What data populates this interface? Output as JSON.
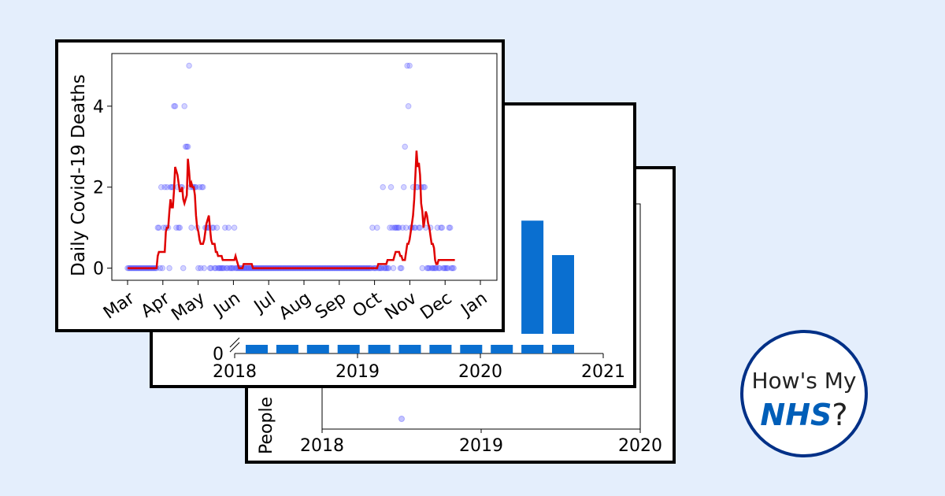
{
  "logo": {
    "line1": "How's My",
    "brand": "NHS",
    "suffix": "?"
  },
  "colors": {
    "background": "#e4eefc",
    "bar": "#0a6fd0",
    "line": "#e00000",
    "points": "#3b3bff",
    "logo_border": "#003087",
    "logo_brand": "#005eb8"
  },
  "chart_data": [
    {
      "id": "back",
      "type": "scatter",
      "ylabel": "People",
      "x_ticks": [
        "2018",
        "2019",
        "2020"
      ],
      "xlim": [
        2018,
        2020
      ],
      "points": [
        {
          "x": 2018.5,
          "y": 0
        }
      ]
    },
    {
      "id": "middle",
      "type": "bar",
      "y_ticks": [
        "0"
      ],
      "x_ticks": [
        "2018",
        "2019",
        "2020",
        "2021"
      ],
      "xlim": [
        2018,
        2021
      ],
      "categories": [
        "2018",
        "2018.25",
        "2018.5",
        "2018.75",
        "2019",
        "2019.25",
        "2019.5",
        "2019.75",
        "2020",
        "2020.25",
        "2020.5"
      ],
      "values": [
        0.05,
        0.05,
        0.05,
        0.05,
        0.05,
        0.05,
        0.05,
        0.05,
        0.05,
        1.15,
        0.8
      ],
      "axis_break": true
    },
    {
      "id": "front",
      "type": "scatter",
      "ylabel": "Daily Covid-19 Deaths",
      "x_ticks": [
        "Mar",
        "Apr",
        "May",
        "Jun",
        "Jul",
        "Aug",
        "Sep",
        "Oct",
        "Nov",
        "Dec",
        "Jan"
      ],
      "y_ticks": [
        "0",
        "2",
        "4"
      ],
      "ylim": [
        -0.3,
        5.3
      ],
      "grid": false,
      "daily_start": "2020-03-01",
      "daily_deaths": [
        0,
        0,
        0,
        0,
        0,
        0,
        0,
        0,
        0,
        0,
        0,
        0,
        0,
        0,
        0,
        0,
        0,
        0,
        0,
        0,
        0,
        0,
        0,
        0,
        0,
        0,
        1,
        1,
        0,
        2,
        0,
        1,
        2,
        1,
        2,
        1,
        0,
        2,
        2,
        2,
        4,
        4,
        1,
        2,
        1,
        1,
        2,
        2,
        0,
        4,
        3,
        3,
        3,
        5,
        2,
        1,
        2,
        2,
        2,
        2,
        1,
        0,
        2,
        0,
        2,
        2,
        0,
        1,
        1,
        1,
        1,
        0,
        0,
        1,
        1,
        0,
        0,
        1,
        0,
        0,
        0,
        0,
        0,
        0,
        1,
        0,
        0,
        1,
        0,
        0,
        0,
        0,
        1,
        0,
        0,
        0,
        0,
        0,
        0,
        0,
        0,
        0,
        0,
        0,
        0,
        0,
        0,
        0,
        0,
        0,
        0,
        0,
        0,
        0,
        0,
        0,
        0,
        0,
        0,
        0,
        0,
        0,
        0,
        0,
        0,
        0,
        0,
        0,
        0,
        0,
        0,
        0,
        0,
        0,
        0,
        0,
        0,
        0,
        0,
        0,
        0,
        0,
        0,
        0,
        0,
        0,
        0,
        0,
        0,
        0,
        0,
        0,
        0,
        0,
        0,
        0,
        0,
        0,
        0,
        0,
        0,
        0,
        0,
        0,
        0,
        0,
        0,
        0,
        0,
        0,
        0,
        0,
        0,
        0,
        0,
        0,
        0,
        0,
        0,
        0,
        0,
        0,
        0,
        0,
        0,
        0,
        0,
        0,
        0,
        0,
        0,
        0,
        0,
        0,
        0,
        0,
        0,
        0,
        0,
        0,
        0,
        0,
        0,
        0,
        0,
        0,
        0,
        0,
        0,
        0,
        0,
        1,
        0,
        0,
        0,
        1,
        0,
        0,
        0,
        0,
        2,
        0,
        0,
        0,
        0,
        0,
        1,
        2,
        1,
        0,
        1,
        1,
        1,
        1,
        1,
        0,
        0,
        1,
        2,
        3,
        1,
        5,
        4,
        5,
        1,
        1,
        2,
        1,
        1,
        2,
        2,
        1,
        1,
        2,
        0,
        2,
        2,
        1,
        0,
        0,
        0,
        1,
        0,
        0,
        0,
        0,
        0,
        1,
        0,
        0,
        1,
        1,
        0,
        0,
        0,
        0,
        0,
        1,
        1,
        0,
        0,
        0
      ],
      "rolling_average": [
        0,
        0,
        0,
        0,
        0,
        0,
        0,
        0,
        0,
        0,
        0,
        0,
        0,
        0,
        0,
        0,
        0,
        0,
        0,
        0,
        0,
        0,
        0,
        0,
        0,
        0,
        0.3,
        0.4,
        0.4,
        0.4,
        0.4,
        0.4,
        0.4,
        0.9,
        1.0,
        1.0,
        1.4,
        1.7,
        1.5,
        1.5,
        1.9,
        2.5,
        2.4,
        2.3,
        2.1,
        1.9,
        1.9,
        2.0,
        1.7,
        1.6,
        1.7,
        1.8,
        2.7,
        2.4,
        2.0,
        2.1,
        2.0,
        2.0,
        1.8,
        1.3,
        1.0,
        0.9,
        0.7,
        0.6,
        0.6,
        0.6,
        0.7,
        0.9,
        1.1,
        1.2,
        1.3,
        1.0,
        0.7,
        0.6,
        0.6,
        0.6,
        0.4,
        0.4,
        0.3,
        0.3,
        0.3,
        0.3,
        0.2,
        0.2,
        0.2,
        0.2,
        0.2,
        0.2,
        0.2,
        0.2,
        0.2,
        0.2,
        0.2,
        0.3,
        0.2,
        0.1,
        0,
        0,
        0,
        0,
        0.1,
        0.1,
        0.1,
        0.1,
        0.1,
        0.1,
        0.1,
        0.1,
        0,
        0,
        0,
        0,
        0,
        0,
        0,
        0,
        0,
        0,
        0,
        0,
        0,
        0,
        0,
        0,
        0,
        0,
        0,
        0,
        0,
        0,
        0,
        0,
        0,
        0,
        0,
        0,
        0,
        0,
        0,
        0,
        0,
        0,
        0,
        0,
        0,
        0,
        0,
        0,
        0,
        0,
        0,
        0,
        0,
        0,
        0,
        0,
        0,
        0,
        0,
        0,
        0,
        0,
        0,
        0,
        0,
        0,
        0,
        0,
        0,
        0,
        0,
        0,
        0,
        0,
        0,
        0,
        0,
        0,
        0,
        0,
        0,
        0,
        0,
        0,
        0,
        0,
        0,
        0,
        0,
        0,
        0,
        0,
        0,
        0,
        0,
        0,
        0,
        0,
        0,
        0,
        0,
        0,
        0,
        0,
        0,
        0,
        0,
        0,
        0,
        0,
        0,
        0,
        0,
        0,
        0,
        0,
        0.1,
        0.1,
        0.1,
        0.1,
        0.1,
        0.1,
        0.1,
        0.1,
        0.2,
        0.2,
        0.2,
        0.2,
        0.2,
        0.2,
        0.3,
        0.4,
        0.4,
        0.4,
        0.4,
        0.3,
        0.3,
        0.2,
        0.2,
        0.2,
        0.4,
        0.6,
        0.6,
        0.7,
        0.9,
        1.1,
        1.3,
        1.7,
        2.3,
        2.9,
        2.5,
        2.6,
        2.3,
        1.6,
        1.4,
        1.0,
        1.2,
        1.4,
        1.3,
        1.1,
        1.0,
        0.8,
        0.6,
        0.6,
        0.5,
        0.2,
        0.1,
        0.1,
        0.2,
        0.2,
        0.2,
        0.2,
        0.2,
        0.2,
        0.2,
        0.2,
        0.2,
        0.2,
        0.2,
        0.2,
        0.2,
        0.2,
        0.2
      ]
    }
  ]
}
